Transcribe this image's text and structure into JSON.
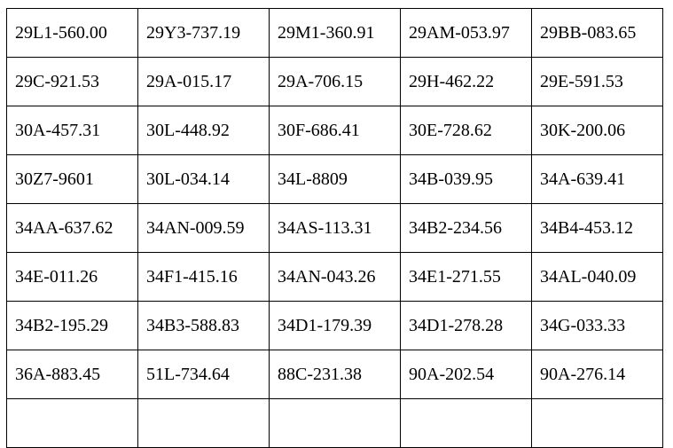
{
  "rows": [
    [
      "29L1-560.00",
      "29Y3-737.19",
      "29M1-360.91",
      "29AM-053.97",
      "29BB-083.65"
    ],
    [
      "29C-921.53",
      "29A-015.17",
      "29A-706.15",
      "29H-462.22",
      "29E-591.53"
    ],
    [
      "30A-457.31",
      "30L-448.92",
      "30F-686.41",
      "30E-728.62",
      "30K-200.06"
    ],
    [
      "30Z7-9601",
      "30L-034.14",
      "34L-8809",
      "34B-039.95",
      "34A-639.41"
    ],
    [
      "34AA-637.62",
      "34AN-009.59",
      "34AS-113.31",
      "34B2-234.56",
      "34B4-453.12"
    ],
    [
      "34E-011.26",
      "34F1-415.16",
      "34AN-043.26",
      "34E1-271.55",
      "34AL-040.09"
    ],
    [
      "34B2-195.29",
      "34B3-588.83",
      "34D1-179.39",
      "34D1-278.28",
      "34G-033.33"
    ],
    [
      "36A-883.45",
      "51L-734.64",
      "88C-231.38",
      "90A-202.54",
      "90A-276.14"
    ]
  ]
}
